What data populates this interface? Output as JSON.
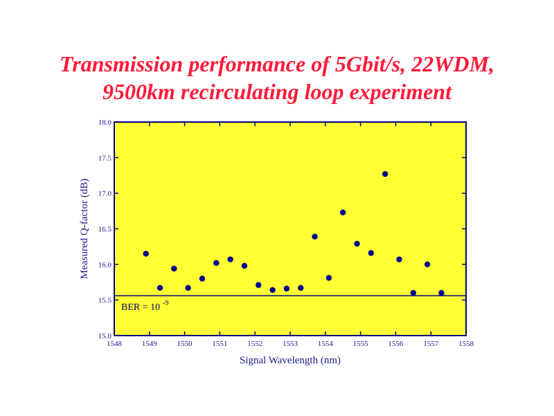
{
  "title": {
    "line1": "Transmission performance of 5Gbit/s, 22WDM,",
    "line2": "9500km recirculating loop experiment"
  },
  "colors": {
    "title": "#ff1a3a",
    "plot_background": "#ffff33",
    "axis": "#000080",
    "marker": "#00008b",
    "text": "#1a1a8c"
  },
  "chart_data": {
    "type": "scatter",
    "title": "Transmission performance of 5Gbit/s, 22WDM, 9500km recirculating loop experiment",
    "xlabel": "Signal Wavelength (nm)",
    "ylabel": "Measured Q-factor (dB)",
    "xlim": [
      1548,
      1558
    ],
    "ylim": [
      15.0,
      18.0
    ],
    "x_ticks": [
      "1548",
      "1549",
      "1550",
      "1551",
      "1552",
      "1553",
      "1554",
      "1555",
      "1556",
      "1557",
      "1558"
    ],
    "y_ticks": [
      "15.0",
      "15.5",
      "16.0",
      "16.5",
      "17.0",
      "17.5",
      "18.0"
    ],
    "grid": false,
    "points": [
      {
        "x": 1548.9,
        "y": 16.15
      },
      {
        "x": 1549.3,
        "y": 15.67
      },
      {
        "x": 1549.7,
        "y": 15.94
      },
      {
        "x": 1550.1,
        "y": 15.67
      },
      {
        "x": 1550.5,
        "y": 15.8
      },
      {
        "x": 1550.9,
        "y": 16.02
      },
      {
        "x": 1551.3,
        "y": 16.07
      },
      {
        "x": 1551.7,
        "y": 15.98
      },
      {
        "x": 1552.1,
        "y": 15.71
      },
      {
        "x": 1552.5,
        "y": 15.64
      },
      {
        "x": 1552.9,
        "y": 15.66
      },
      {
        "x": 1553.3,
        "y": 15.67
      },
      {
        "x": 1553.7,
        "y": 16.39
      },
      {
        "x": 1554.1,
        "y": 15.81
      },
      {
        "x": 1554.5,
        "y": 16.73
      },
      {
        "x": 1554.9,
        "y": 16.29
      },
      {
        "x": 1555.3,
        "y": 16.16
      },
      {
        "x": 1555.7,
        "y": 17.27
      },
      {
        "x": 1556.1,
        "y": 16.07
      },
      {
        "x": 1556.5,
        "y": 15.6
      },
      {
        "x": 1556.9,
        "y": 16.0
      },
      {
        "x": 1557.3,
        "y": 15.6
      }
    ],
    "reference_line": {
      "y": 15.56
    },
    "annotation": {
      "text": "BER = 10",
      "superscript": "-9"
    }
  }
}
